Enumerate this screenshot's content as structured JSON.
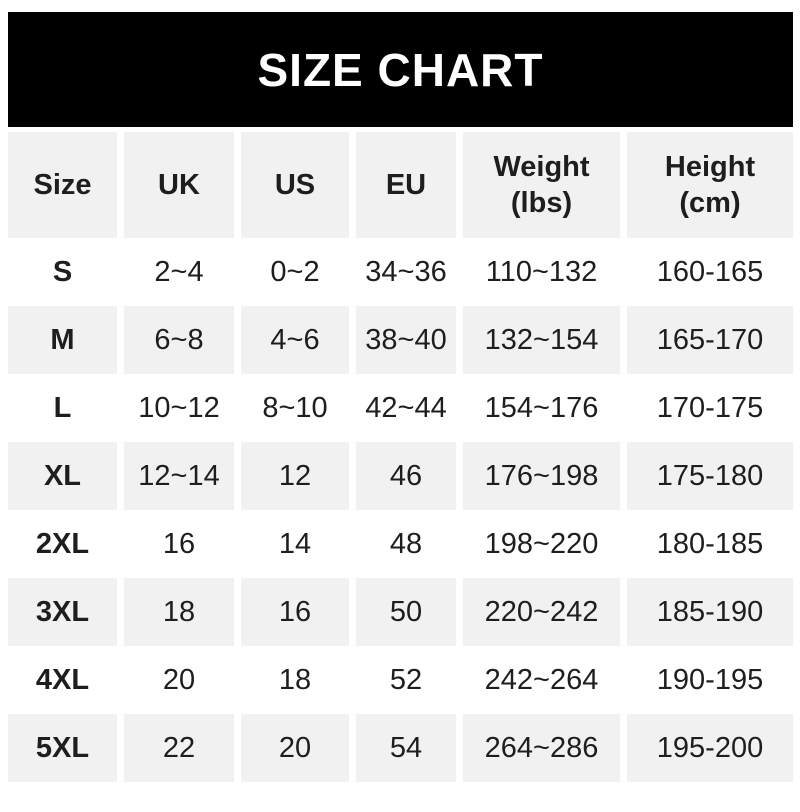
{
  "banner": {
    "title": "SIZE CHART"
  },
  "colors": {
    "banner_bg": "#000000",
    "banner_text": "#ffffff",
    "row_alt_bg": "#f1f1f2",
    "text": "#1e1e1e"
  },
  "table": {
    "columns": [
      {
        "label": "Size"
      },
      {
        "label": "UK"
      },
      {
        "label": "US"
      },
      {
        "label": "EU"
      },
      {
        "label": "Weight",
        "sub": "(lbs)"
      },
      {
        "label": "Height",
        "sub": "(cm)"
      }
    ],
    "rows": [
      {
        "size": "S",
        "uk": "2~4",
        "us": "0~2",
        "eu": "34~36",
        "weight": "110~132",
        "height": "160-165"
      },
      {
        "size": "M",
        "uk": "6~8",
        "us": "4~6",
        "eu": "38~40",
        "weight": "132~154",
        "height": "165-170"
      },
      {
        "size": "L",
        "uk": "10~12",
        "us": "8~10",
        "eu": "42~44",
        "weight": "154~176",
        "height": "170-175"
      },
      {
        "size": "XL",
        "uk": "12~14",
        "us": "12",
        "eu": "46",
        "weight": "176~198",
        "height": "175-180"
      },
      {
        "size": "2XL",
        "uk": "16",
        "us": "14",
        "eu": "48",
        "weight": "198~220",
        "height": "180-185"
      },
      {
        "size": "3XL",
        "uk": "18",
        "us": "16",
        "eu": "50",
        "weight": "220~242",
        "height": "185-190"
      },
      {
        "size": "4XL",
        "uk": "20",
        "us": "18",
        "eu": "52",
        "weight": "242~264",
        "height": "190-195"
      },
      {
        "size": "5XL",
        "uk": "22",
        "us": "20",
        "eu": "54",
        "weight": "264~286",
        "height": "195-200"
      }
    ]
  },
  "chart_data": {
    "type": "table",
    "title": "SIZE CHART",
    "columns": [
      "Size",
      "UK",
      "US",
      "EU",
      "Weight (lbs)",
      "Height (cm)"
    ],
    "rows": [
      [
        "S",
        "2~4",
        "0~2",
        "34~36",
        "110~132",
        "160-165"
      ],
      [
        "M",
        "6~8",
        "4~6",
        "38~40",
        "132~154",
        "165-170"
      ],
      [
        "L",
        "10~12",
        "8~10",
        "42~44",
        "154~176",
        "170-175"
      ],
      [
        "XL",
        "12~14",
        "12",
        "46",
        "176~198",
        "175-180"
      ],
      [
        "2XL",
        "16",
        "14",
        "48",
        "198~220",
        "180-185"
      ],
      [
        "3XL",
        "18",
        "16",
        "50",
        "220~242",
        "185-190"
      ],
      [
        "4XL",
        "20",
        "18",
        "52",
        "242~264",
        "190-195"
      ],
      [
        "5XL",
        "22",
        "20",
        "54",
        "264~286",
        "195-200"
      ]
    ],
    "layout": {
      "header_bg": "#f1f1f2",
      "alternating_row_bg": [
        "#ffffff",
        "#f1f1f2"
      ],
      "gridlines": false
    }
  }
}
